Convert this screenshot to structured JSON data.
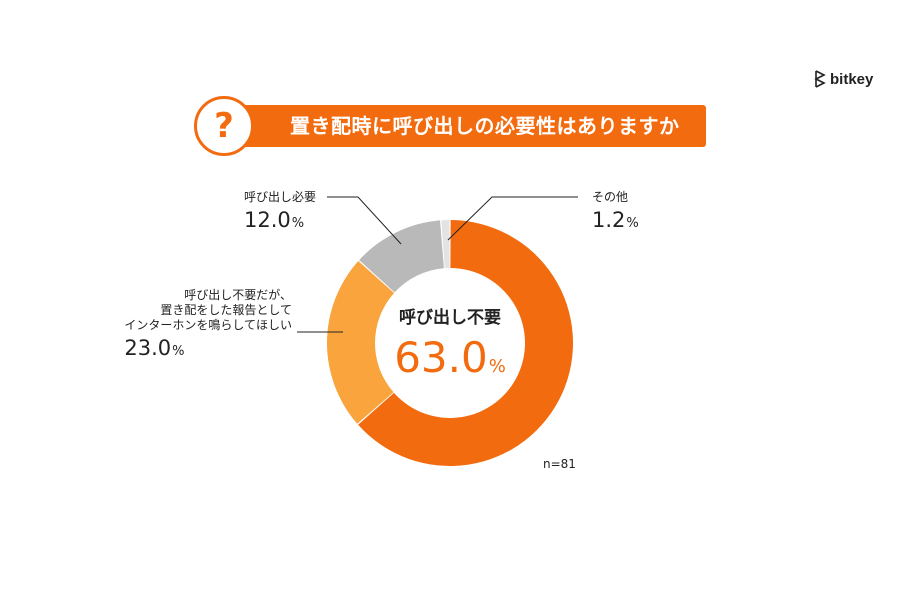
{
  "brand": {
    "name": "bitkey"
  },
  "title": {
    "icon": "question-mark-icon",
    "glyph": "?",
    "text": "置き配時に呼び出しの必要性はありますか"
  },
  "chart_data": {
    "type": "pie",
    "style": "donut",
    "title": "置き配時に呼び出しの必要性はありますか",
    "unit": "%",
    "slices": [
      {
        "name": "呼び出し不要",
        "value": 63.0,
        "color": "#f26b0f"
      },
      {
        "name": "呼び出し不要だが、置き配をした報告としてインターホンを鳴らしてほしい",
        "value": 23.0,
        "color": "#f9a43c"
      },
      {
        "name": "呼び出し必要",
        "value": 12.0,
        "color": "#b9b9b9"
      },
      {
        "name": "その他",
        "value": 1.2,
        "color": "#e3e3e3"
      }
    ],
    "note": "n=81"
  },
  "labels": {
    "main": {
      "name": "呼び出し不要",
      "value": "63.0",
      "unit": "%"
    },
    "intercom": {
      "lines": [
        "呼び出し不要だが、",
        "置き配をした報告として",
        "インターホンを鳴らしてほしい"
      ],
      "value": "23.0",
      "unit": "%"
    },
    "required": {
      "name": "呼び出し必要",
      "value": "12.0",
      "unit": "%"
    },
    "other": {
      "name": "その他",
      "value": "1.2",
      "unit": "%"
    }
  },
  "note": "n=81"
}
